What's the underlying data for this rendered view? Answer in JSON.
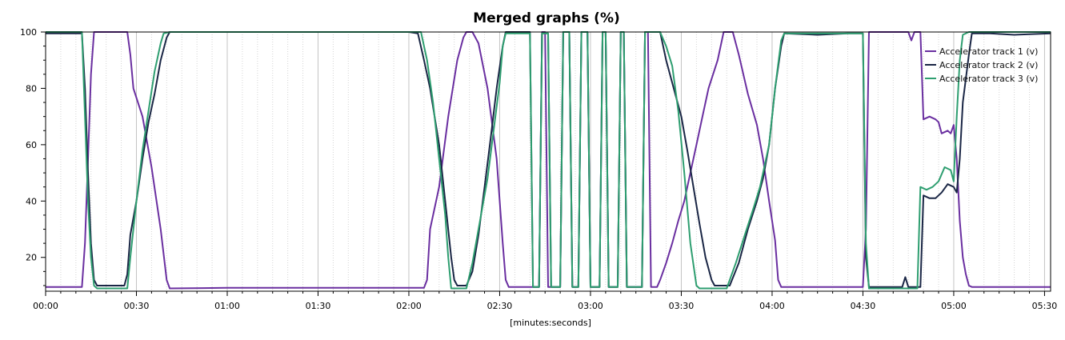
{
  "chart_data": {
    "type": "line",
    "title": "Merged graphs (%)",
    "xlabel": "[minutes:seconds]",
    "ylabel": "",
    "xlim": [
      0,
      332
    ],
    "ylim": [
      8,
      100
    ],
    "x_ticks": [
      {
        "value": 0,
        "label": "00:00"
      },
      {
        "value": 30,
        "label": "00:30"
      },
      {
        "value": 60,
        "label": "01:00"
      },
      {
        "value": 90,
        "label": "01:30"
      },
      {
        "value": 120,
        "label": "02:00"
      },
      {
        "value": 150,
        "label": "02:30"
      },
      {
        "value": 180,
        "label": "03:00"
      },
      {
        "value": 210,
        "label": "03:30"
      },
      {
        "value": 240,
        "label": "04:00"
      },
      {
        "value": 270,
        "label": "04:30"
      },
      {
        "value": 300,
        "label": "05:00"
      },
      {
        "value": 330,
        "label": "05:30"
      }
    ],
    "y_ticks": [
      {
        "value": 20,
        "label": "20"
      },
      {
        "value": 40,
        "label": "40"
      },
      {
        "value": 60,
        "label": "60"
      },
      {
        "value": 80,
        "label": "80"
      },
      {
        "value": 100,
        "label": "100"
      }
    ],
    "grid": {
      "major_x": true,
      "minor_x": true,
      "y": false
    },
    "legend_position": "top-right",
    "series": [
      {
        "name": "Accelerator track 1 (v)",
        "color": "#6a2fa0",
        "points": [
          [
            0,
            9.5
          ],
          [
            12,
            9.5
          ],
          [
            13,
            25
          ],
          [
            14,
            55
          ],
          [
            15,
            85
          ],
          [
            16,
            100
          ],
          [
            27,
            100
          ],
          [
            28,
            92
          ],
          [
            29,
            80
          ],
          [
            32,
            70
          ],
          [
            35,
            52
          ],
          [
            38,
            30
          ],
          [
            40,
            12
          ],
          [
            41,
            9
          ],
          [
            60,
            9.2
          ],
          [
            90,
            9.2
          ],
          [
            120,
            9.2
          ],
          [
            125,
            9.2
          ],
          [
            126,
            12
          ],
          [
            127,
            30
          ],
          [
            130,
            45
          ],
          [
            133,
            70
          ],
          [
            136,
            90
          ],
          [
            138,
            98
          ],
          [
            139,
            100
          ],
          [
            141,
            100
          ],
          [
            143,
            96
          ],
          [
            146,
            80
          ],
          [
            149,
            55
          ],
          [
            151,
            25
          ],
          [
            152,
            12
          ],
          [
            153,
            9.5
          ],
          [
            163,
            9.5
          ],
          [
            164,
            100
          ],
          [
            165,
            100
          ],
          [
            166,
            9.5
          ],
          [
            170,
            9.5
          ],
          [
            171,
            100
          ],
          [
            173,
            100
          ],
          [
            174,
            9.5
          ],
          [
            176,
            9.5
          ],
          [
            177,
            100
          ],
          [
            179,
            100
          ],
          [
            180,
            9.5
          ],
          [
            183,
            9.5
          ],
          [
            184,
            100
          ],
          [
            185,
            100
          ],
          [
            186,
            9.5
          ],
          [
            189,
            9.5
          ],
          [
            190,
            100
          ],
          [
            191,
            100
          ],
          [
            192,
            9.5
          ],
          [
            197,
            9.5
          ],
          [
            198,
            100
          ],
          [
            199,
            100
          ],
          [
            200,
            9.5
          ],
          [
            202,
            9.5
          ],
          [
            203,
            12
          ],
          [
            205,
            18
          ],
          [
            207,
            25
          ],
          [
            209,
            33
          ],
          [
            211,
            40
          ],
          [
            213,
            50
          ],
          [
            215,
            60
          ],
          [
            217,
            70
          ],
          [
            219,
            80
          ],
          [
            222,
            90
          ],
          [
            224,
            100
          ],
          [
            227,
            100
          ],
          [
            229,
            92
          ],
          [
            232,
            78
          ],
          [
            235,
            67
          ],
          [
            237,
            55
          ],
          [
            239,
            40
          ],
          [
            241,
            26
          ],
          [
            242,
            12
          ],
          [
            243,
            9.5
          ],
          [
            270,
            9.5
          ],
          [
            271,
            30
          ],
          [
            272,
            100
          ],
          [
            285,
            100
          ],
          [
            286,
            97
          ],
          [
            287,
            100
          ],
          [
            289,
            100
          ],
          [
            290,
            69
          ],
          [
            292,
            70
          ],
          [
            294,
            69
          ],
          [
            295,
            68
          ],
          [
            296,
            64
          ],
          [
            298,
            65
          ],
          [
            299,
            64
          ],
          [
            300,
            67
          ],
          [
            301,
            55
          ],
          [
            302,
            33
          ],
          [
            303,
            20
          ],
          [
            304,
            14
          ],
          [
            305,
            10
          ],
          [
            306,
            9.5
          ],
          [
            332,
            9.5
          ]
        ]
      },
      {
        "name": "Accelerator track 2 (v)",
        "color": "#1a2645",
        "points": [
          [
            0,
            99.5
          ],
          [
            12,
            99.5
          ],
          [
            13,
            80
          ],
          [
            14,
            50
          ],
          [
            15,
            25
          ],
          [
            16,
            12
          ],
          [
            17,
            10
          ],
          [
            26,
            10
          ],
          [
            27,
            14
          ],
          [
            28,
            28
          ],
          [
            30,
            40
          ],
          [
            32,
            55
          ],
          [
            34,
            68
          ],
          [
            36,
            78
          ],
          [
            38,
            90
          ],
          [
            40,
            98
          ],
          [
            41,
            100
          ],
          [
            70,
            100
          ],
          [
            100,
            100
          ],
          [
            120,
            100
          ],
          [
            123,
            99.5
          ],
          [
            125,
            90
          ],
          [
            127,
            80
          ],
          [
            130,
            60
          ],
          [
            132,
            40
          ],
          [
            134,
            20
          ],
          [
            135,
            12
          ],
          [
            136,
            10
          ],
          [
            139,
            10
          ],
          [
            141,
            15
          ],
          [
            143,
            28
          ],
          [
            145,
            45
          ],
          [
            147,
            62
          ],
          [
            149,
            80
          ],
          [
            151,
            95
          ],
          [
            152,
            100
          ],
          [
            160,
            100
          ],
          [
            161,
            9.5
          ],
          [
            163,
            9.5
          ],
          [
            164,
            99.5
          ],
          [
            166,
            99.5
          ],
          [
            167,
            9.5
          ],
          [
            170,
            9.5
          ],
          [
            171,
            100
          ],
          [
            173,
            100
          ],
          [
            174,
            9.5
          ],
          [
            176,
            9.5
          ],
          [
            177,
            100
          ],
          [
            179,
            100
          ],
          [
            180,
            9.5
          ],
          [
            183,
            9.5
          ],
          [
            184,
            100
          ],
          [
            185,
            100
          ],
          [
            186,
            9.5
          ],
          [
            189,
            9.5
          ],
          [
            190,
            100
          ],
          [
            191,
            100
          ],
          [
            192,
            9.5
          ],
          [
            197,
            9.5
          ],
          [
            198,
            100
          ],
          [
            202,
            100
          ],
          [
            203,
            100
          ],
          [
            205,
            90
          ],
          [
            207,
            82
          ],
          [
            210,
            70
          ],
          [
            212,
            58
          ],
          [
            214,
            45
          ],
          [
            216,
            32
          ],
          [
            218,
            20
          ],
          [
            220,
            12
          ],
          [
            221,
            10
          ],
          [
            226,
            10
          ],
          [
            229,
            18
          ],
          [
            232,
            30
          ],
          [
            235,
            40
          ],
          [
            237,
            48
          ],
          [
            239,
            60
          ],
          [
            241,
            80
          ],
          [
            243,
            95
          ],
          [
            244,
            99.5
          ],
          [
            255,
            99
          ],
          [
            265,
            99.5
          ],
          [
            270,
            99.5
          ],
          [
            271,
            20
          ],
          [
            272,
            9.5
          ],
          [
            275,
            9.5
          ],
          [
            283,
            9.5
          ],
          [
            284,
            13
          ],
          [
            285,
            9.5
          ],
          [
            289,
            9.5
          ],
          [
            290,
            42
          ],
          [
            292,
            41
          ],
          [
            294,
            41
          ],
          [
            296,
            43
          ],
          [
            298,
            46
          ],
          [
            300,
            45
          ],
          [
            301,
            43
          ],
          [
            302,
            55
          ],
          [
            303,
            75
          ],
          [
            305,
            92
          ],
          [
            306,
            99.5
          ],
          [
            312,
            99.5
          ],
          [
            320,
            99
          ],
          [
            332,
            99.5
          ]
        ]
      },
      {
        "name": "Accelerator track 3 (v)",
        "color": "#2e9e70",
        "points": [
          [
            0,
            100
          ],
          [
            12,
            100
          ],
          [
            13,
            70
          ],
          [
            14,
            40
          ],
          [
            15,
            20
          ],
          [
            16,
            10
          ],
          [
            17,
            9
          ],
          [
            27,
            9
          ],
          [
            28,
            20
          ],
          [
            30,
            40
          ],
          [
            32,
            58
          ],
          [
            34,
            72
          ],
          [
            36,
            86
          ],
          [
            38,
            96
          ],
          [
            39,
            99.5
          ],
          [
            41,
            100
          ],
          [
            70,
            100
          ],
          [
            100,
            100
          ],
          [
            120,
            100
          ],
          [
            124,
            100
          ],
          [
            126,
            90
          ],
          [
            128,
            75
          ],
          [
            130,
            55
          ],
          [
            132,
            35
          ],
          [
            133,
            20
          ],
          [
            134,
            9
          ],
          [
            139,
            9
          ],
          [
            141,
            18
          ],
          [
            143,
            30
          ],
          [
            146,
            48
          ],
          [
            148,
            65
          ],
          [
            150,
            82
          ],
          [
            151,
            95
          ],
          [
            152,
            99.5
          ],
          [
            160,
            99.5
          ],
          [
            161,
            9.5
          ],
          [
            163,
            9.5
          ],
          [
            164,
            99.5
          ],
          [
            166,
            99.5
          ],
          [
            167,
            9.5
          ],
          [
            170,
            9.5
          ],
          [
            171,
            100
          ],
          [
            173,
            100
          ],
          [
            174,
            9.5
          ],
          [
            176,
            9.5
          ],
          [
            177,
            100
          ],
          [
            179,
            100
          ],
          [
            180,
            9.5
          ],
          [
            183,
            9.5
          ],
          [
            184,
            100
          ],
          [
            185,
            100
          ],
          [
            186,
            9.5
          ],
          [
            189,
            9.5
          ],
          [
            190,
            100
          ],
          [
            191,
            100
          ],
          [
            192,
            9.5
          ],
          [
            197,
            9.5
          ],
          [
            198,
            100
          ],
          [
            203,
            100
          ],
          [
            205,
            95
          ],
          [
            207,
            88
          ],
          [
            209,
            72
          ],
          [
            211,
            50
          ],
          [
            213,
            25
          ],
          [
            215,
            10
          ],
          [
            216,
            9
          ],
          [
            225,
            9
          ],
          [
            228,
            18
          ],
          [
            231,
            28
          ],
          [
            234,
            38
          ],
          [
            236,
            45
          ],
          [
            239,
            60
          ],
          [
            241,
            80
          ],
          [
            243,
            97
          ],
          [
            244,
            99.5
          ],
          [
            270,
            99.5
          ],
          [
            271,
            25
          ],
          [
            272,
            9
          ],
          [
            288,
            9
          ],
          [
            289,
            45
          ],
          [
            291,
            44
          ],
          [
            293,
            45
          ],
          [
            295,
            47
          ],
          [
            297,
            52
          ],
          [
            299,
            51
          ],
          [
            300,
            47
          ],
          [
            301,
            70
          ],
          [
            302,
            90
          ],
          [
            303,
            99
          ],
          [
            305,
            100
          ],
          [
            312,
            100
          ],
          [
            332,
            100
          ]
        ]
      }
    ]
  }
}
